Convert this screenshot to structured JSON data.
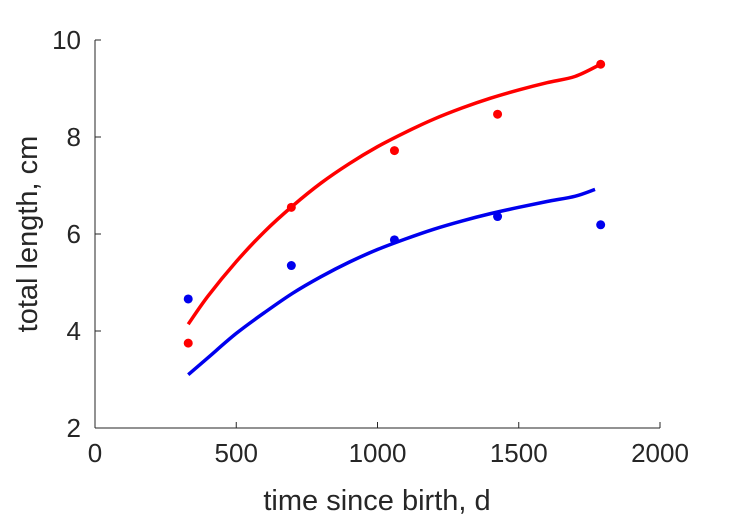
{
  "chart_data": {
    "type": "scatter",
    "title": "",
    "xlabel": "time since birth, d",
    "ylabel": "total length, cm",
    "xlim": [
      0,
      2000
    ],
    "ylim": [
      2,
      10
    ],
    "xticks": [
      "0",
      "500",
      "1000",
      "1500",
      "2000"
    ],
    "yticks": [
      "2",
      "4",
      "6",
      "8",
      "10"
    ],
    "grid": false,
    "legend": "none",
    "series": [
      {
        "color": "#ff0000",
        "points": {
          "x": [
            330,
            695,
            1060,
            1425,
            1790
          ],
          "y": [
            3.75,
            6.55,
            7.72,
            8.47,
            9.5
          ]
        },
        "fit": {
          "x": [
            330,
            400,
            500,
            600,
            700,
            800,
            900,
            1000,
            1100,
            1200,
            1300,
            1400,
            1500,
            1600,
            1700,
            1790
          ],
          "y": [
            4.14,
            4.72,
            5.43,
            6.05,
            6.58,
            7.05,
            7.45,
            7.8,
            8.1,
            8.37,
            8.6,
            8.8,
            8.97,
            9.12,
            9.25,
            9.5
          ]
        }
      },
      {
        "color": "#0000ee",
        "points": {
          "x": [
            330,
            695,
            1060,
            1425,
            1790
          ],
          "y": [
            4.66,
            5.35,
            5.88,
            6.36,
            6.19
          ]
        },
        "fit": {
          "x": [
            330,
            400,
            500,
            600,
            700,
            800,
            900,
            1000,
            1100,
            1200,
            1300,
            1400,
            1500,
            1600,
            1700,
            1770
          ],
          "y": [
            3.1,
            3.45,
            3.95,
            4.38,
            4.78,
            5.12,
            5.42,
            5.68,
            5.9,
            6.1,
            6.27,
            6.42,
            6.55,
            6.67,
            6.78,
            6.92
          ]
        }
      }
    ]
  }
}
